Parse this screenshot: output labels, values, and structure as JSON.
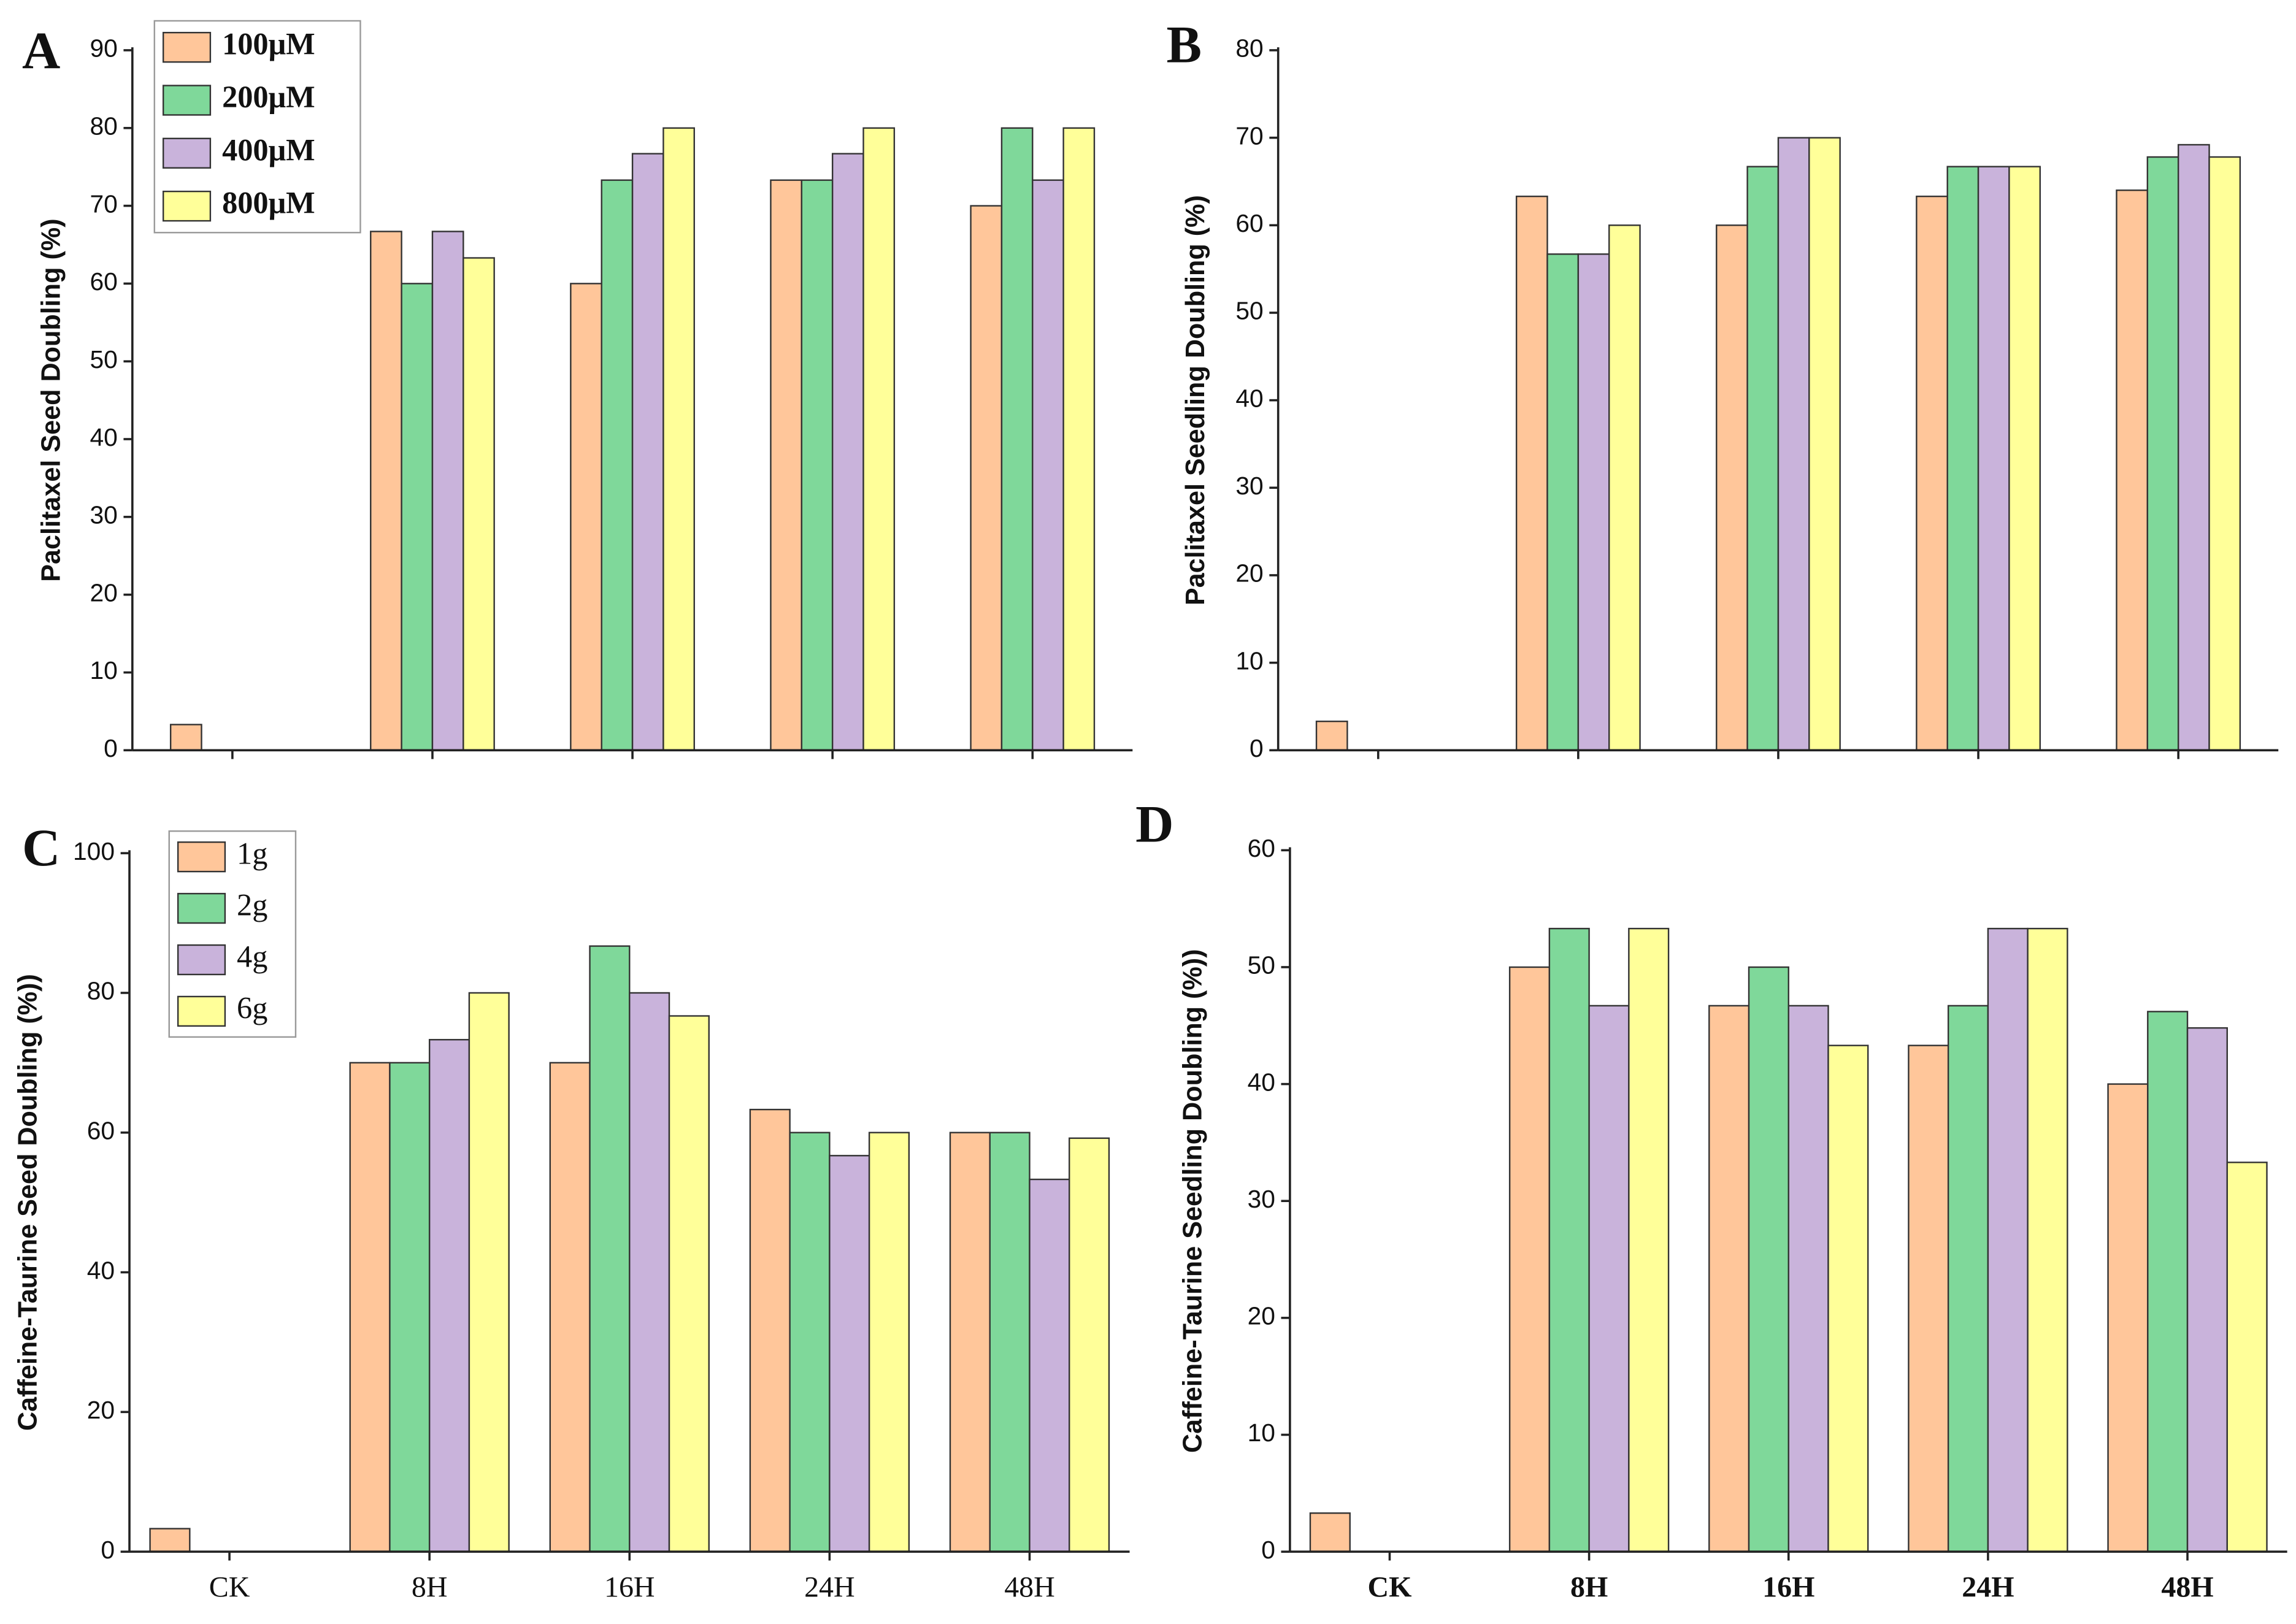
{
  "chart_data": [
    {
      "type": "bar",
      "label": "A",
      "ylabel": "Paclitaxel Seed Doubling (%)",
      "categories": [
        null,
        null,
        null,
        null,
        null
      ],
      "ylim": [
        0,
        90
      ],
      "yticks": [
        0,
        10,
        20,
        30,
        40,
        50,
        60,
        70,
        80,
        90
      ],
      "series": [
        {
          "name": "100μM",
          "color": "#FFC69A",
          "values": [
            3.3,
            66.7,
            60,
            73.3,
            70
          ]
        },
        {
          "name": "200μM",
          "color": "#7FD89A",
          "values": [
            null,
            60,
            73.3,
            73.3,
            80
          ]
        },
        {
          "name": "400μM",
          "color": "#C9B3DB",
          "values": [
            null,
            66.7,
            76.7,
            76.7,
            73.3
          ]
        },
        {
          "name": "800μM",
          "color": "#FFFF99",
          "values": [
            null,
            63.3,
            80,
            80,
            80
          ]
        }
      ]
    },
    {
      "type": "bar",
      "label": "B",
      "ylabel": "Paclitaxel Seedling Doubling (%)",
      "categories": [
        null,
        null,
        null,
        null,
        null
      ],
      "ylim": [
        0,
        80
      ],
      "yticks": [
        0,
        10,
        20,
        30,
        40,
        50,
        60,
        70,
        80
      ],
      "series": [
        {
          "color": "#FFC69A",
          "values": [
            3.3,
            63.3,
            60,
            63.3,
            64
          ]
        },
        {
          "color": "#7FD89A",
          "values": [
            null,
            56.7,
            66.7,
            66.7,
            67.8
          ]
        },
        {
          "color": "#C9B3DB",
          "values": [
            null,
            56.7,
            70,
            66.7,
            69.2
          ]
        },
        {
          "color": "#FFFF99",
          "values": [
            null,
            60,
            70,
            66.7,
            67.8
          ]
        }
      ]
    },
    {
      "type": "bar",
      "label": "C",
      "ylabel": "Caffeine-Taurine Seed Doubling (%))",
      "categories": [
        "CK",
        "8H",
        "16H",
        "24H",
        "48H"
      ],
      "ylim": [
        0,
        100
      ],
      "yticks": [
        0,
        20,
        40,
        60,
        80,
        100
      ],
      "series": [
        {
          "name": "1g",
          "color": "#FFC69A",
          "values": [
            3.3,
            70,
            70,
            63.3,
            60
          ]
        },
        {
          "name": "2g",
          "color": "#7FD89A",
          "values": [
            null,
            70,
            86.7,
            60,
            60
          ]
        },
        {
          "name": "4g",
          "color": "#C9B3DB",
          "values": [
            null,
            73.3,
            80,
            56.7,
            53.3
          ]
        },
        {
          "name": "6g",
          "color": "#FFFF99",
          "values": [
            null,
            80,
            76.7,
            60,
            59.2
          ]
        }
      ]
    },
    {
      "type": "bar",
      "label": "D",
      "ylabel": "Caffeine-Taurine Seedling Doubling (%))",
      "categories": [
        "CK",
        "8H",
        "16H",
        "24H",
        "48H"
      ],
      "ylim": [
        0,
        60
      ],
      "yticks": [
        0,
        10,
        20,
        30,
        40,
        50,
        60
      ],
      "series": [
        {
          "color": "#FFC69A",
          "values": [
            3.3,
            50,
            46.7,
            43.3,
            40
          ]
        },
        {
          "color": "#7FD89A",
          "values": [
            null,
            53.3,
            50,
            46.7,
            46.2
          ]
        },
        {
          "color": "#C9B3DB",
          "values": [
            null,
            46.7,
            46.7,
            53.3,
            44.8
          ]
        },
        {
          "color": "#FFFF99",
          "values": [
            null,
            53.3,
            43.3,
            53.3,
            33.3
          ]
        }
      ]
    }
  ]
}
